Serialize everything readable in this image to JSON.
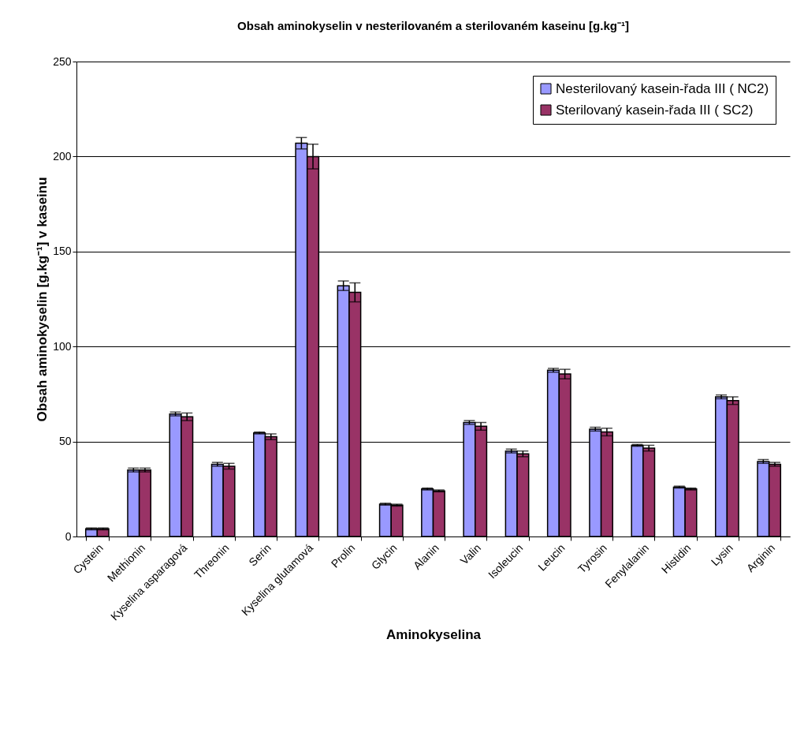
{
  "chart_data": {
    "type": "bar",
    "title": "Obsah aminokyselin v nesterilovaném a sterilovaném kaseinu [g.kg⁻¹]",
    "xlabel": "Aminokyselina",
    "ylabel": "Obsah aminokyselin [g.kg⁻¹] v kaseinu",
    "categories": [
      "Cystein",
      "Methionin",
      "Kyselina asparagová",
      "Threonin",
      "Serin",
      "Kyselina glutamová",
      "Prolin",
      "Glycin",
      "Alanin",
      "Valin",
      "Isoleucin",
      "Leucin",
      "Tyrosin",
      "Fenylalanin",
      "Histidin",
      "Lysin",
      "Arginin"
    ],
    "series": [
      {
        "name": "Nesterilovaný kasein-řada III ( NC2)",
        "color": "#9999ff",
        "values": [
          4,
          35,
          64.5,
          38,
          54.5,
          207,
          132,
          17,
          25,
          60,
          45,
          87.5,
          56.5,
          48,
          26,
          73.5,
          39.5
        ],
        "errors": [
          0.5,
          1,
          1,
          1,
          0.5,
          3,
          2.5,
          0.5,
          0.5,
          1,
          1,
          1,
          1,
          0.5,
          0.5,
          1,
          1
        ]
      },
      {
        "name": "Sterilovaný kasein-řada III ( SC2)",
        "color": "#993366",
        "values": [
          4,
          35,
          63,
          37,
          52.5,
          200,
          128.5,
          16.5,
          24,
          58,
          43.5,
          85.5,
          55,
          46.5,
          25,
          71.5,
          38
        ],
        "errors": [
          0.5,
          1,
          2,
          1.5,
          1.5,
          6.5,
          5,
          0.5,
          0.5,
          2,
          1.5,
          2.5,
          2,
          1.5,
          0.5,
          2,
          1
        ]
      }
    ],
    "ylim": [
      0,
      250
    ],
    "yticks": [
      0,
      50,
      100,
      150,
      200,
      250
    ],
    "grid": "y",
    "legend": "top right"
  }
}
